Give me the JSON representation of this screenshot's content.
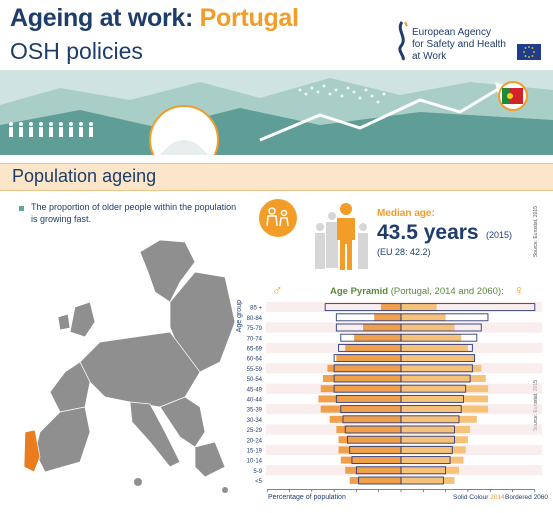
{
  "header": {
    "title_main": "Ageing at work:",
    "title_country": "Portugal",
    "subtitle": "OSH policies",
    "agency_lines": [
      "European Agency",
      "for Safety and Health",
      "at Work"
    ],
    "brand_blue": "#1f3d6b",
    "brand_orange": "#f39c28"
  },
  "section": {
    "title": "Population ageing",
    "intro": "The proportion of older people within the population is growing fast."
  },
  "median": {
    "label": "Median age:",
    "value": "43.5 years",
    "year": "(2015)",
    "eu": "(EU 28: 42.2)",
    "source": "Source: Eurostat, 2015"
  },
  "chart_data": {
    "type": "bar",
    "title": "Age Pyramid",
    "title_note": "(Portugal, 2014 and 2060):",
    "ylabel": "Age group",
    "xlabel": "Percentage of population",
    "xlim": [
      -6,
      6
    ],
    "x_ticks": [
      "6",
      "5",
      "4",
      "3",
      "2",
      "1",
      "0",
      "1",
      "2",
      "3",
      "4",
      "5",
      "6"
    ],
    "categories": [
      "85 +",
      "80-84",
      "75-79",
      "70-74",
      "65-69",
      "60-64",
      "55-59",
      "50-54",
      "45-49",
      "40-44",
      "35-39",
      "30-34",
      "25-29",
      "20-24",
      "15-19",
      "10-14",
      "5-9",
      "<5"
    ],
    "series": [
      {
        "name": "2014",
        "style": "Solid Colour",
        "male": [
          0.9,
          1.2,
          1.7,
          2.1,
          2.5,
          2.9,
          3.3,
          3.5,
          3.6,
          3.7,
          3.6,
          3.2,
          2.9,
          2.8,
          2.8,
          2.7,
          2.5,
          2.3
        ],
        "female": [
          1.6,
          2.0,
          2.4,
          2.7,
          3.0,
          3.3,
          3.6,
          3.8,
          3.9,
          3.9,
          3.9,
          3.4,
          3.1,
          3.0,
          2.9,
          2.8,
          2.6,
          2.4
        ]
      },
      {
        "name": "2060",
        "style": "Bordered",
        "male": [
          3.4,
          2.9,
          2.9,
          2.7,
          2.8,
          3.0,
          3.0,
          3.0,
          3.0,
          2.9,
          2.7,
          2.6,
          2.5,
          2.4,
          2.3,
          2.2,
          2.0,
          1.9
        ],
        "female": [
          6.0,
          3.9,
          3.6,
          3.4,
          3.2,
          3.3,
          3.2,
          3.1,
          2.9,
          2.8,
          2.7,
          2.6,
          2.4,
          2.4,
          2.3,
          2.2,
          2.0,
          1.9
        ]
      }
    ],
    "legend": {
      "solid_label": "Solid Colour",
      "solid_year": "2014",
      "bordered_label": "Bordered",
      "bordered_year": "2060"
    },
    "colors": {
      "male_2014": "#f0a04b",
      "female_2014": "#f6c27a",
      "border_2060": "#2b3a7a",
      "row_band": "#f6dede"
    },
    "source": "Source: Eurostat, 2015"
  }
}
